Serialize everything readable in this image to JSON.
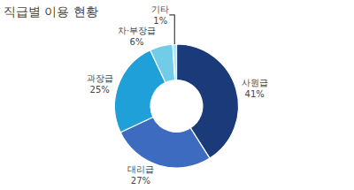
{
  "chart_data": {
    "type": "donut",
    "title": "직급별 이용 현황",
    "categories": [
      "사원급",
      "대리급",
      "과장급",
      "차·부장급",
      "기타"
    ],
    "values": [
      41,
      27,
      25,
      6,
      1
    ],
    "value_labels": [
      "41%",
      "27%",
      "25%",
      "6%",
      "1%"
    ],
    "colors": [
      "#1b3a7a",
      "#3d6bbf",
      "#1fa0d8",
      "#72cce8",
      "#aee6f5"
    ],
    "data_labels": true
  }
}
